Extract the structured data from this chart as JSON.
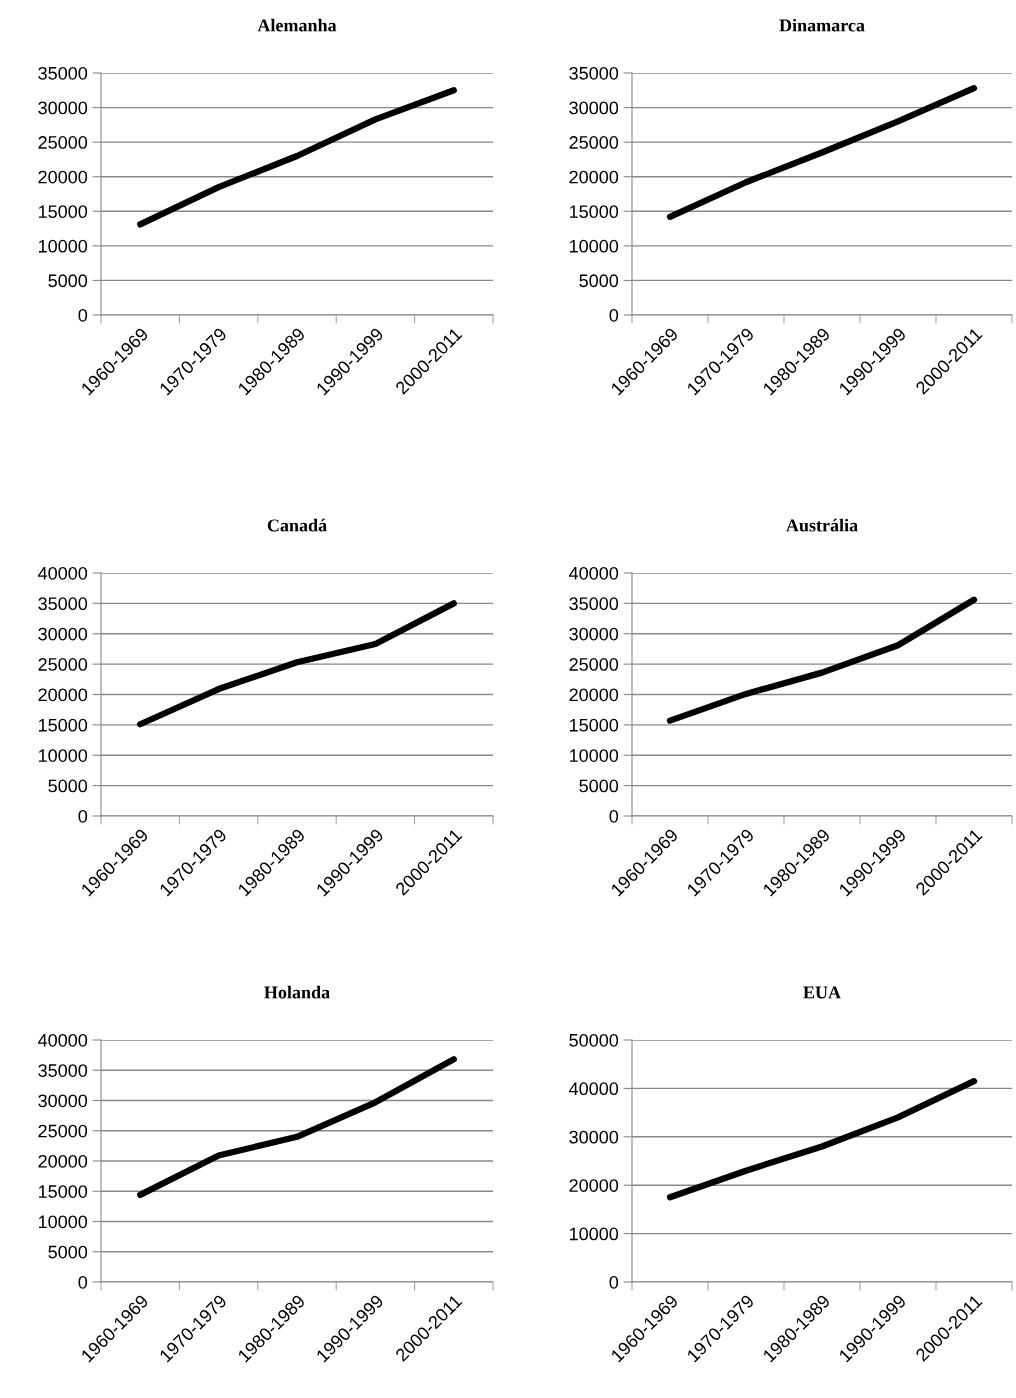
{
  "chart_data": [
    {
      "type": "line",
      "title": "Alemanha",
      "categories": [
        "1960-1969",
        "1970-1979",
        "1980-1989",
        "1990-1999",
        "2000-2011"
      ],
      "series": [
        {
          "color": "#000000",
          "values": [
            13100,
            18500,
            23000,
            28300,
            32500
          ]
        }
      ],
      "ylim": [
        0,
        35000
      ],
      "yticks": [
        0,
        5000,
        10000,
        15000,
        20000,
        25000,
        30000,
        35000
      ],
      "grid": "y",
      "marker": "none",
      "line_style": "solid"
    },
    {
      "type": "line",
      "title": "Dinamarca",
      "categories": [
        "1960-1969",
        "1970-1979",
        "1980-1989",
        "1990-1999",
        "2000-2011"
      ],
      "series": [
        {
          "color": "#000000",
          "values": [
            14200,
            19200,
            23500,
            28000,
            32800
          ]
        }
      ],
      "ylim": [
        0,
        35000
      ],
      "yticks": [
        0,
        5000,
        10000,
        15000,
        20000,
        25000,
        30000,
        35000
      ],
      "grid": "y",
      "marker": "none",
      "line_style": "solid"
    },
    {
      "type": "line",
      "title": "Canadá",
      "categories": [
        "1960-1969",
        "1970-1979",
        "1980-1989",
        "1990-1999",
        "2000-2011"
      ],
      "series": [
        {
          "color": "#000000",
          "values": [
            15100,
            20900,
            25300,
            28300,
            35000
          ]
        }
      ],
      "ylim": [
        0,
        40000
      ],
      "yticks": [
        0,
        5000,
        10000,
        15000,
        20000,
        25000,
        30000,
        35000,
        40000
      ],
      "grid": "y",
      "marker": "none",
      "line_style": "solid"
    },
    {
      "type": "line",
      "title": "Austrália",
      "categories": [
        "1960-1969",
        "1970-1979",
        "1980-1989",
        "1990-1999",
        "2000-2011"
      ],
      "series": [
        {
          "color": "#000000",
          "values": [
            15700,
            20100,
            23600,
            28100,
            35600
          ]
        }
      ],
      "ylim": [
        0,
        40000
      ],
      "yticks": [
        0,
        5000,
        10000,
        15000,
        20000,
        25000,
        30000,
        35000,
        40000
      ],
      "grid": "y",
      "marker": "none",
      "line_style": "solid"
    },
    {
      "type": "line",
      "title": "Holanda",
      "categories": [
        "1960-1969",
        "1970-1979",
        "1980-1989",
        "1990-1999",
        "2000-2011"
      ],
      "series": [
        {
          "color": "#000000",
          "values": [
            14400,
            20900,
            24000,
            29700,
            36800
          ]
        }
      ],
      "ylim": [
        0,
        40000
      ],
      "yticks": [
        0,
        5000,
        10000,
        15000,
        20000,
        25000,
        30000,
        35000,
        40000
      ],
      "grid": "y",
      "marker": "none",
      "line_style": "solid"
    },
    {
      "type": "line",
      "title": "EUA",
      "categories": [
        "1960-1969",
        "1970-1979",
        "1980-1989",
        "1990-1999",
        "2000-2011"
      ],
      "series": [
        {
          "color": "#000000",
          "values": [
            17500,
            23000,
            28000,
            34000,
            41500
          ]
        }
      ],
      "ylim": [
        0,
        50000
      ],
      "yticks": [
        0,
        10000,
        20000,
        30000,
        40000,
        50000
      ],
      "grid": "y",
      "marker": "none",
      "line_style": "solid"
    }
  ]
}
